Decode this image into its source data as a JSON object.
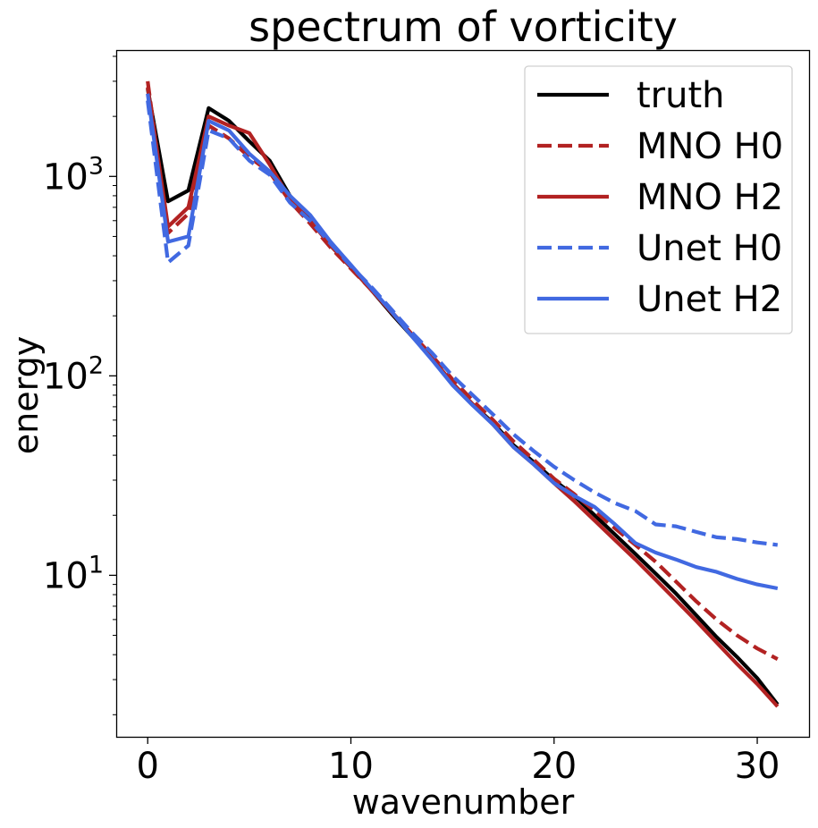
{
  "chart_data": {
    "type": "line",
    "title": "spectrum of vorticity",
    "xlabel": "wavenumber",
    "ylabel": "energy",
    "xlim": [
      -1.55,
      32.55
    ],
    "ylim": [
      1.55,
      4300
    ],
    "yscale": "log",
    "grid": false,
    "legend_position": "top-right",
    "x_ticks": [
      0,
      10,
      20,
      30
    ],
    "x_tick_labels": [
      "0",
      "10",
      "20",
      "30"
    ],
    "y_ticks": [
      10,
      100,
      1000
    ],
    "y_tick_base": "10",
    "y_tick_exponents": [
      "1",
      "2",
      "3"
    ],
    "series": [
      {
        "name": "truth",
        "color": "#000000",
        "dash": "solid",
        "x": [
          0,
          1,
          2,
          3,
          4,
          5,
          6,
          7,
          8,
          9,
          10,
          11,
          12,
          13,
          14,
          15,
          16,
          17,
          18,
          19,
          20,
          21,
          22,
          23,
          24,
          25,
          26,
          27,
          28,
          29,
          30,
          31
        ],
        "y": [
          2750,
          750,
          850,
          2200,
          1900,
          1500,
          1200,
          800,
          610,
          450,
          350,
          270,
          205,
          158,
          122,
          92,
          72,
          58,
          45,
          37,
          30,
          25,
          20,
          16,
          12.8,
          10.2,
          8.1,
          6.3,
          4.9,
          3.9,
          3.05,
          2.25
        ]
      },
      {
        "name": "MNO H0",
        "color": "#b22222",
        "dash": "dashed",
        "x": [
          0,
          1,
          2,
          3,
          4,
          5,
          6,
          7,
          8,
          9,
          10,
          11,
          12,
          13,
          14,
          15,
          16,
          17,
          18,
          19,
          20,
          21,
          22,
          23,
          24,
          25,
          26,
          27,
          28,
          29,
          30,
          31
        ],
        "y": [
          3000,
          520,
          650,
          1800,
          1550,
          1250,
          1050,
          750,
          580,
          440,
          345,
          270,
          210,
          162,
          126,
          96,
          75,
          60,
          47,
          38,
          30.5,
          25.5,
          21,
          17.2,
          14.2,
          11.7,
          9.3,
          7.4,
          6.0,
          5.0,
          4.3,
          3.8
        ]
      },
      {
        "name": "MNO H2",
        "color": "#b22222",
        "dash": "solid",
        "x": [
          0,
          1,
          2,
          3,
          4,
          5,
          6,
          7,
          8,
          9,
          10,
          11,
          12,
          13,
          14,
          15,
          16,
          17,
          18,
          19,
          20,
          21,
          22,
          23,
          24,
          25,
          26,
          27,
          28,
          29,
          30,
          31
        ],
        "y": [
          2800,
          560,
          700,
          2000,
          1800,
          1650,
          1150,
          770,
          600,
          450,
          350,
          270,
          208,
          160,
          122,
          92,
          72,
          57,
          44,
          36,
          29,
          23.5,
          18.8,
          15,
          12,
          9.5,
          7.5,
          5.9,
          4.6,
          3.6,
          2.85,
          2.2
        ]
      },
      {
        "name": "Unet H0",
        "color": "#4169e1",
        "dash": "dashed",
        "x": [
          0,
          1,
          2,
          3,
          4,
          5,
          6,
          7,
          8,
          9,
          10,
          11,
          12,
          13,
          14,
          15,
          16,
          17,
          18,
          19,
          20,
          21,
          22,
          23,
          24,
          25,
          26,
          27,
          28,
          29,
          30,
          31
        ],
        "y": [
          2400,
          370,
          450,
          1700,
          1550,
          1200,
          1020,
          740,
          600,
          460,
          355,
          280,
          215,
          165,
          130,
          100,
          80,
          64,
          51,
          42,
          35,
          30,
          26,
          23,
          21,
          18,
          17.6,
          16.5,
          15.5,
          15.2,
          14.6,
          14.2
        ]
      },
      {
        "name": "Unet H2",
        "color": "#4169e1",
        "dash": "solid",
        "x": [
          0,
          1,
          2,
          3,
          4,
          5,
          6,
          7,
          8,
          9,
          10,
          11,
          12,
          13,
          14,
          15,
          16,
          17,
          18,
          19,
          20,
          21,
          22,
          23,
          24,
          25,
          26,
          27,
          28,
          29,
          30,
          31
        ],
        "y": [
          2600,
          470,
          500,
          1900,
          1700,
          1300,
          1060,
          800,
          640,
          470,
          360,
          275,
          210,
          158,
          120,
          90,
          71,
          57,
          44,
          36,
          29,
          25,
          22,
          18,
          14.5,
          13,
          12,
          11,
          10.4,
          9.6,
          9.0,
          8.6
        ]
      }
    ]
  }
}
